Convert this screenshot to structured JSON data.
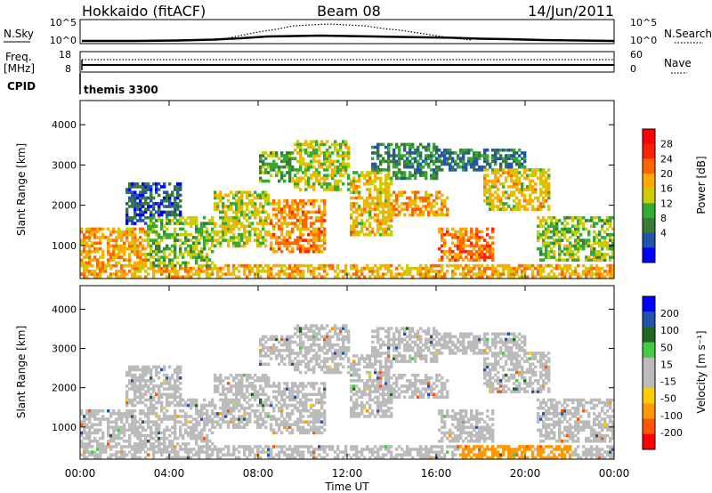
{
  "header": {
    "station": "Hokkaido (fitACF)",
    "beam": "Beam 08",
    "date": "14/Jun/2011"
  },
  "top_panels": {
    "nsky_label": "N.Sky",
    "nsky_ticks": [
      "10^5",
      "10^0"
    ],
    "nsearch_label": "N.Search",
    "nsearch_ticks": [
      "10^5",
      "10^0"
    ],
    "freq_label_1": "Freq.",
    "freq_label_2": "[MHz]",
    "freq_ticks": [
      "18",
      "8"
    ],
    "nave_label": "Nave",
    "nave_ticks": [
      "60",
      "0"
    ],
    "cpid_label": "CPID",
    "cpid_value": "themis 3300"
  },
  "colors": {
    "power": [
      "#0000ff",
      "#2255aa",
      "#3a7a3a",
      "#33aa33",
      "#cccc00",
      "#ffaa00",
      "#ff6600",
      "#ff2200",
      "#ff0000"
    ],
    "velocity": [
      "#ff0000",
      "#ff5500",
      "#ff9900",
      "#ffcc00",
      "#bbbbbb",
      "#bbbbbb",
      "#44cc44",
      "#226622",
      "#2255aa",
      "#0000ff"
    ]
  },
  "chart_data": [
    {
      "type": "heatmap",
      "quantity": "Power",
      "ylabel": "Slant Range [km]",
      "yticks": [
        1000,
        2000,
        3000,
        4000
      ],
      "ylim": [
        180,
        4600
      ],
      "xlim": [
        0,
        24
      ],
      "xticks": [
        "00:00",
        "04:00",
        "08:00",
        "12:00",
        "16:00",
        "20:00",
        "00:00"
      ],
      "colorbar_label": "Power [dB]",
      "colorbar_ticks": [
        "28",
        "24",
        "20",
        "16",
        "12",
        "8",
        "4"
      ]
    },
    {
      "type": "heatmap",
      "quantity": "Velocity",
      "ylabel": "Slant Range [km]",
      "yticks": [
        1000,
        2000,
        3000,
        4000
      ],
      "ylim": [
        180,
        4600
      ],
      "xlim": [
        0,
        24
      ],
      "xticks": [
        "00:00",
        "04:00",
        "08:00",
        "12:00",
        "16:00",
        "20:00",
        "00:00"
      ],
      "xlabel": "Time UT",
      "colorbar_label": "Velocity [m s⁻¹]",
      "colorbar_ticks": [
        "200",
        "100",
        "50",
        "15",
        "-15",
        "-50",
        "-100",
        "-200"
      ]
    }
  ]
}
